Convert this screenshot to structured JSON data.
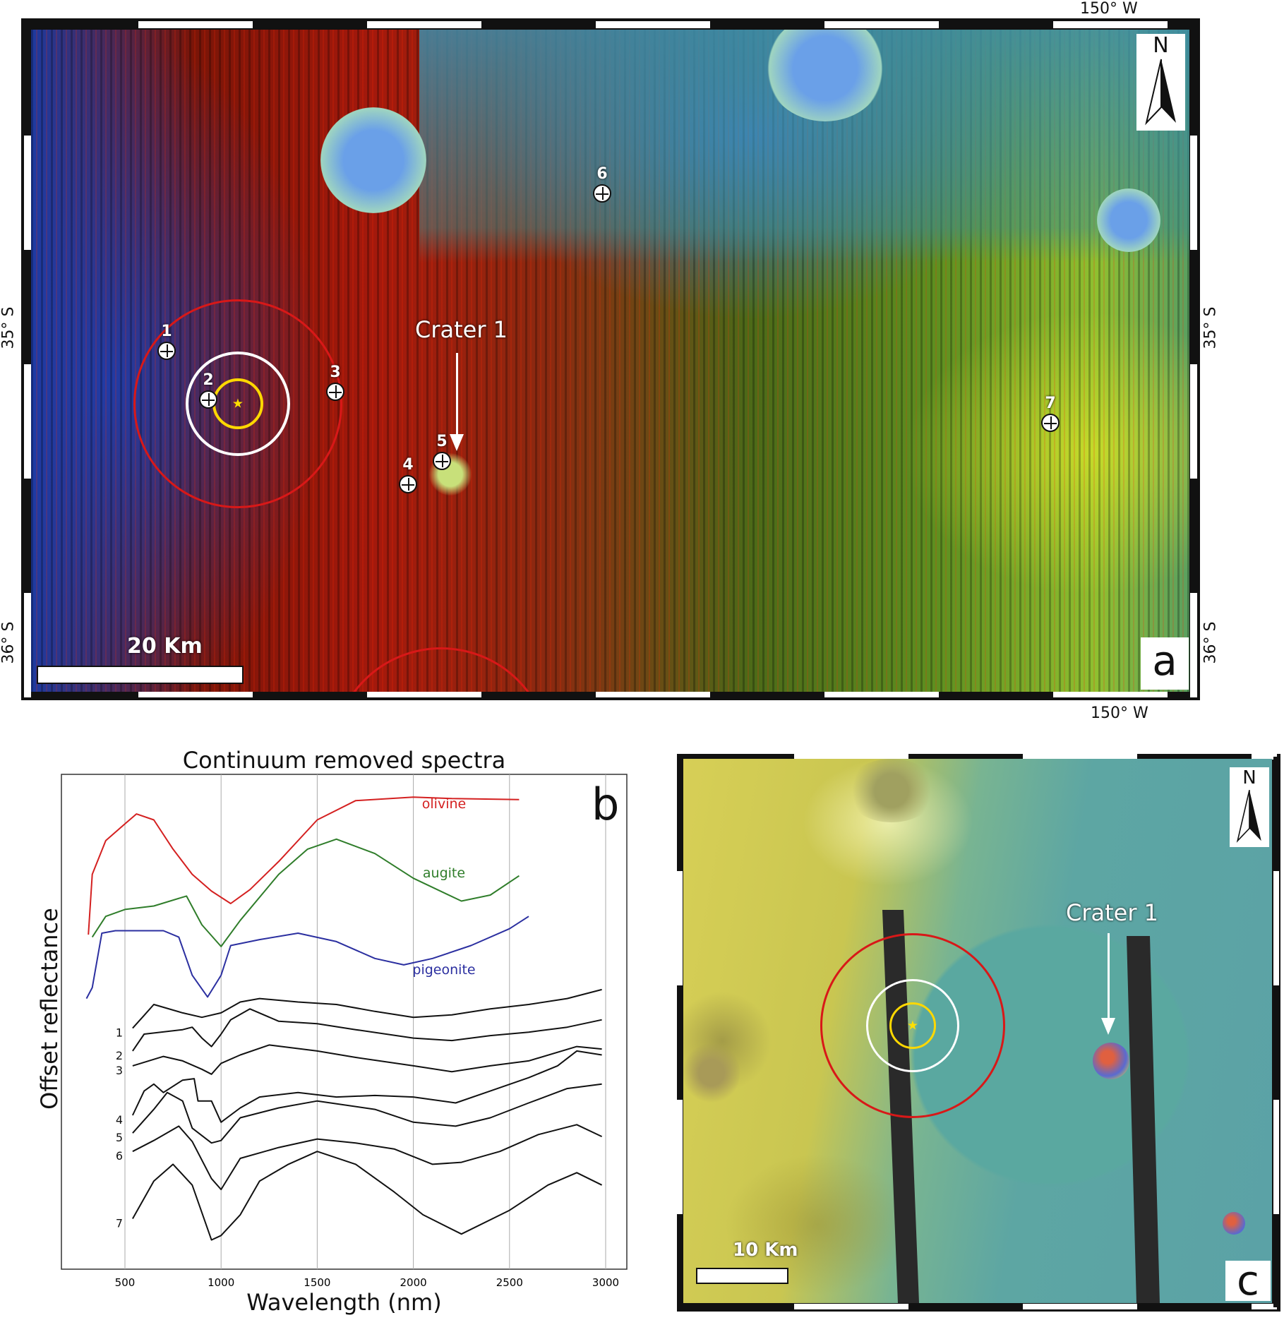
{
  "panel_a": {
    "letter": "a",
    "lon_top": "150° W",
    "lon_bottom": "150° W",
    "lat_35_left": "35° S",
    "lat_35_right": "35° S",
    "lat_36_left": "36° S",
    "lat_36_right": "36° S",
    "north": "N",
    "scale_label": "20 Km",
    "crater_label": "Crater 1",
    "points": [
      "1",
      "2",
      "3",
      "4",
      "5",
      "6",
      "7"
    ]
  },
  "panel_c": {
    "letter": "c",
    "north": "N",
    "scale_label": "10 Km",
    "crater_label": "Crater 1"
  },
  "chart_data": {
    "type": "line",
    "letter": "b",
    "title": "Continuum removed spectra",
    "xlabel": "Wavelength (nm)",
    "ylabel": "Offset reflectance",
    "xlim": [
      170,
      3130
    ],
    "ylim": [
      0,
      100
    ],
    "xticks": [
      500,
      1000,
      1500,
      2000,
      2500,
      3000
    ],
    "grid": "vertical",
    "series": [
      {
        "name": "olivine",
        "label": "olivine",
        "color": "#d42020",
        "x": [
          310,
          330,
          400,
          500,
          560,
          650,
          750,
          850,
          950,
          1050,
          1150,
          1300,
          1500,
          1700,
          2000,
          2200,
          2550
        ],
        "y": [
          67.6,
          79.8,
          86.6,
          90.0,
          92.0,
          90.8,
          84.9,
          79.8,
          76.4,
          73.9,
          76.7,
          82.4,
          90.8,
          94.7,
          95.4,
          95.1,
          94.9
        ]
      },
      {
        "name": "augite",
        "label": "augite",
        "color": "#2f7d2a",
        "x": [
          330,
          400,
          500,
          650,
          820,
          900,
          1000,
          1100,
          1300,
          1450,
          1600,
          1800,
          2000,
          2250,
          2400,
          2550
        ],
        "y": [
          67.1,
          71.3,
          72.7,
          73.4,
          75.4,
          69.6,
          65.2,
          70.5,
          79.8,
          84.9,
          86.9,
          84.0,
          79.0,
          74.4,
          75.6,
          79.5
        ]
      },
      {
        "name": "pigeonite",
        "label": "pigeonite",
        "color": "#2b2fa0",
        "x": [
          300,
          330,
          380,
          450,
          700,
          780,
          850,
          930,
          1000,
          1050,
          1200,
          1400,
          1600,
          1800,
          1950,
          2100,
          2300,
          2500,
          2600
        ],
        "y": [
          54.7,
          56.9,
          67.9,
          68.4,
          68.4,
          67.1,
          59.4,
          55.0,
          59.4,
          65.4,
          66.6,
          67.9,
          66.2,
          62.8,
          61.5,
          62.8,
          65.4,
          68.8,
          71.3
        ]
      },
      {
        "name": "1",
        "label": "1",
        "color": "#111111",
        "x": [
          540,
          600,
          650,
          800,
          900,
          1000,
          1100,
          1200,
          1400,
          1600,
          1800,
          2000,
          2200,
          2400,
          2600,
          2800,
          2980
        ],
        "y": [
          48.7,
          51.3,
          53.5,
          51.8,
          50.9,
          51.8,
          54.0,
          54.7,
          54.0,
          53.5,
          52.1,
          50.9,
          51.4,
          52.6,
          53.5,
          54.7,
          56.5
        ]
      },
      {
        "name": "2",
        "label": "2",
        "color": "#111111",
        "x": [
          540,
          600,
          800,
          850,
          900,
          950,
          1000,
          1050,
          1150,
          1300,
          1500,
          1700,
          2000,
          2200,
          2400,
          2600,
          2800,
          2980
        ],
        "y": [
          44.1,
          47.5,
          48.4,
          48.9,
          46.7,
          45.0,
          47.5,
          50.4,
          52.6,
          50.1,
          49.6,
          48.4,
          46.7,
          46.2,
          47.2,
          47.9,
          48.9,
          50.4
        ]
      },
      {
        "name": "3",
        "label": "3",
        "color": "#111111",
        "x": [
          540,
          700,
          800,
          900,
          950,
          1000,
          1100,
          1250,
          1500,
          1700,
          2000,
          2200,
          2400,
          2600,
          2850,
          2980
        ],
        "y": [
          41.1,
          43.0,
          42.1,
          40.4,
          39.4,
          41.6,
          43.3,
          45.3,
          44.1,
          42.8,
          41.1,
          39.9,
          41.1,
          42.1,
          45.0,
          44.5
        ]
      },
      {
        "name": "4",
        "label": "4",
        "color": "#111111",
        "x": [
          540,
          600,
          650,
          700,
          800,
          860,
          880,
          950,
          1000,
          1100,
          1200,
          1400,
          1600,
          1800,
          2000,
          2220,
          2400,
          2600,
          2750,
          2850,
          2980
        ],
        "y": [
          31.1,
          36.0,
          37.4,
          35.7,
          38.2,
          38.5,
          34.0,
          34.0,
          29.7,
          32.6,
          34.8,
          35.7,
          34.8,
          35.1,
          34.8,
          33.6,
          36.0,
          38.7,
          41.1,
          44.1,
          43.3
        ]
      },
      {
        "name": "5",
        "label": "5",
        "color": "#111111",
        "x": [
          540,
          650,
          720,
          800,
          850,
          950,
          1000,
          1100,
          1300,
          1500,
          1800,
          2000,
          2220,
          2400,
          2600,
          2800,
          2980
        ],
        "y": [
          27.5,
          32.3,
          35.7,
          34.0,
          28.5,
          25.5,
          26.0,
          30.6,
          32.6,
          34.0,
          32.3,
          29.7,
          28.9,
          30.6,
          33.6,
          36.5,
          37.4
        ]
      },
      {
        "name": "6",
        "label": "6",
        "color": "#111111",
        "x": [
          540,
          650,
          780,
          850,
          950,
          1000,
          1100,
          1300,
          1500,
          1700,
          1900,
          2100,
          2250,
          2450,
          2650,
          2850,
          2980
        ],
        "y": [
          23.8,
          26.0,
          28.9,
          25.8,
          18.3,
          16.1,
          22.4,
          24.6,
          26.3,
          25.5,
          24.3,
          21.2,
          21.6,
          23.8,
          27.2,
          29.2,
          26.8
        ]
      },
      {
        "name": "7",
        "label": "7",
        "color": "#111111",
        "x": [
          540,
          650,
          750,
          850,
          950,
          1000,
          1100,
          1200,
          1350,
          1500,
          1700,
          1900,
          2050,
          2250,
          2500,
          2700,
          2850,
          2980
        ],
        "y": [
          10.2,
          17.8,
          21.2,
          17.0,
          5.9,
          6.8,
          11.0,
          17.8,
          21.2,
          23.8,
          21.2,
          15.6,
          11.0,
          7.1,
          11.9,
          17.0,
          19.5,
          17.0
        ]
      }
    ]
  }
}
